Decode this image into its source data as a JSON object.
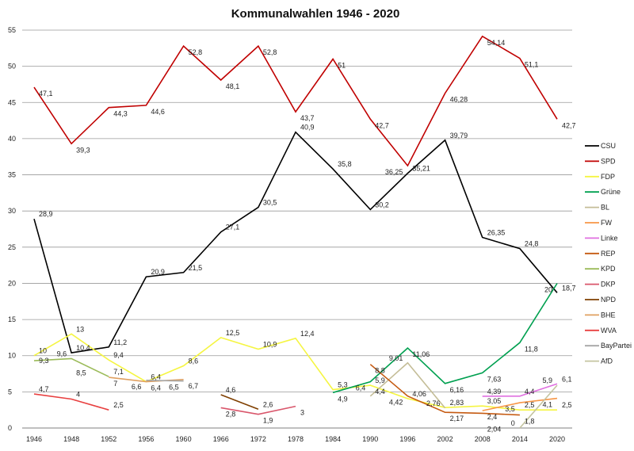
{
  "chart_data": {
    "type": "line",
    "title": "Kommunalwahlen 1946 - 2020",
    "categories": [
      "1946",
      "1948",
      "1952",
      "1956",
      "1960",
      "1966",
      "1972",
      "1978",
      "1984",
      "1990",
      "1996",
      "2002",
      "2008",
      "2014",
      "2020"
    ],
    "ylim": [
      0,
      55
    ],
    "yticks": [
      0,
      5,
      10,
      15,
      20,
      25,
      30,
      35,
      40,
      45,
      50,
      55
    ],
    "grid": true,
    "legend_position": "right",
    "series": [
      {
        "name": "CSU",
        "color": "#000000",
        "values": [
          28.9,
          10.4,
          11.2,
          20.9,
          21.5,
          27.1,
          30.5,
          40.9,
          35.8,
          30.2,
          35.21,
          39.79,
          26.35,
          24.8,
          18.7
        ]
      },
      {
        "name": "SPD",
        "color": "#c00000",
        "values": [
          47.1,
          39.3,
          44.3,
          44.6,
          52.8,
          48.1,
          52.8,
          43.7,
          51,
          42.7,
          36.25,
          46.28,
          54.14,
          51.1,
          42.7
        ]
      },
      {
        "name": "FDP",
        "color": "#f5f542",
        "values": [
          10,
          13,
          9.4,
          6.4,
          8.6,
          12.5,
          10.9,
          12.4,
          5.3,
          5.9,
          4.06,
          2.83,
          3.05,
          2.5,
          2.5
        ]
      },
      {
        "name": "Grüne",
        "color": "#00a050",
        "values": [
          null,
          null,
          null,
          null,
          null,
          null,
          null,
          null,
          4.9,
          6.4,
          11.06,
          6.16,
          7.63,
          11.8,
          20
        ]
      },
      {
        "name": "BL",
        "color": "#c4bd97",
        "values": [
          null,
          null,
          null,
          null,
          null,
          null,
          null,
          null,
          null,
          4.4,
          9.01,
          2.76,
          null,
          null,
          null
        ]
      },
      {
        "name": "FW",
        "color": "#f79646",
        "values": [
          null,
          null,
          null,
          null,
          null,
          null,
          null,
          null,
          null,
          null,
          null,
          null,
          2.4,
          3.5,
          4.1
        ]
      },
      {
        "name": "Linke",
        "color": "#e070e0",
        "values": [
          null,
          null,
          null,
          null,
          null,
          null,
          null,
          null,
          null,
          null,
          null,
          null,
          4.39,
          4.4,
          6.1
        ]
      },
      {
        "name": "REP",
        "color": "#c55a11",
        "values": [
          null,
          null,
          null,
          null,
          null,
          null,
          null,
          null,
          null,
          8.8,
          4.42,
          2.17,
          2.04,
          1.8,
          null
        ]
      },
      {
        "name": "KPD",
        "color": "#9bbb59",
        "values": [
          9.3,
          9.6,
          7.1,
          null,
          null,
          null,
          null,
          null,
          null,
          null,
          null,
          null,
          null,
          null,
          null
        ]
      },
      {
        "name": "DKP",
        "color": "#d9566b",
        "values": [
          null,
          null,
          null,
          null,
          null,
          2.8,
          1.9,
          3,
          null,
          null,
          null,
          null,
          null,
          null,
          null
        ]
      },
      {
        "name": "NPD",
        "color": "#7f3f00",
        "values": [
          null,
          null,
          null,
          null,
          null,
          4.6,
          2.6,
          null,
          null,
          null,
          null,
          null,
          null,
          null,
          null
        ]
      },
      {
        "name": "BHE",
        "color": "#e0a060",
        "values": [
          null,
          null,
          7,
          6.4,
          6.7,
          null,
          null,
          null,
          null,
          null,
          null,
          null,
          null,
          null,
          null
        ]
      },
      {
        "name": "WVA",
        "color": "#e84040",
        "values": [
          4.7,
          4,
          2.5,
          null,
          null,
          null,
          null,
          null,
          null,
          null,
          null,
          null,
          null,
          null,
          null
        ]
      },
      {
        "name": "BayPartei",
        "color": "#a6a6a6",
        "values": [
          null,
          8.5,
          null,
          6.6,
          6.5,
          null,
          null,
          null,
          null,
          null,
          null,
          null,
          null,
          null,
          null
        ]
      },
      {
        "name": "AfD",
        "color": "#c4c4a0",
        "values": [
          null,
          null,
          null,
          null,
          null,
          null,
          null,
          null,
          null,
          null,
          null,
          null,
          null,
          0,
          5.9
        ]
      }
    ]
  }
}
